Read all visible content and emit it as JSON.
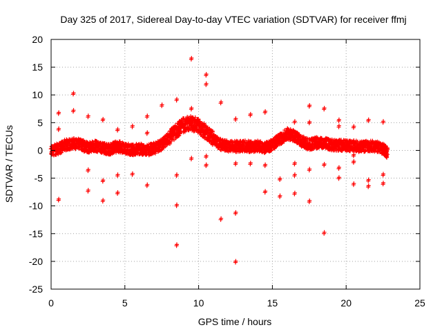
{
  "chart_data": {
    "type": "scatter",
    "title": "Day 325 of 2017, Sidereal Day-to-day VTEC variation (SDTVAR) for receiver ffmj",
    "xlabel": "GPS time / hours",
    "ylabel": "SDTVAR / TECUs",
    "xlim": [
      0,
      25
    ],
    "ylim": [
      -25,
      20
    ],
    "xticks": [
      0,
      5,
      10,
      15,
      20,
      25
    ],
    "yticks": [
      -25,
      -20,
      -15,
      -10,
      -5,
      0,
      5,
      10,
      15,
      20
    ],
    "grid": true,
    "marker": "+",
    "color": "#ff0000",
    "series": [
      {
        "name": "SDTVAR",
        "values_comment": "continuous band approximated by x/y pairs; see band and outliers",
        "band": [
          [
            0.0,
            0.0
          ],
          [
            0.5,
            0.3
          ],
          [
            1.0,
            1.0
          ],
          [
            1.5,
            1.3
          ],
          [
            2.0,
            1.0
          ],
          [
            2.5,
            0.6
          ],
          [
            3.0,
            0.8
          ],
          [
            3.5,
            0.4
          ],
          [
            4.0,
            0.2
          ],
          [
            4.5,
            0.7
          ],
          [
            5.0,
            0.4
          ],
          [
            5.5,
            0.1
          ],
          [
            6.0,
            0.3
          ],
          [
            6.5,
            0.0
          ],
          [
            7.0,
            0.4
          ],
          [
            7.5,
            1.0
          ],
          [
            8.0,
            2.3
          ],
          [
            8.5,
            3.6
          ],
          [
            9.0,
            4.6
          ],
          [
            9.5,
            4.9
          ],
          [
            10.0,
            4.4
          ],
          [
            10.5,
            3.2
          ],
          [
            11.0,
            2.0
          ],
          [
            11.5,
            1.0
          ],
          [
            12.0,
            0.8
          ],
          [
            12.5,
            0.7
          ],
          [
            13.0,
            0.8
          ],
          [
            13.5,
            0.7
          ],
          [
            14.0,
            0.8
          ],
          [
            14.5,
            0.5
          ],
          [
            15.0,
            1.0
          ],
          [
            15.5,
            2.0
          ],
          [
            16.0,
            3.0
          ],
          [
            16.5,
            2.6
          ],
          [
            17.0,
            1.6
          ],
          [
            17.5,
            1.0
          ],
          [
            18.0,
            1.4
          ],
          [
            18.5,
            1.3
          ],
          [
            19.0,
            1.0
          ],
          [
            19.5,
            0.9
          ],
          [
            20.0,
            0.9
          ],
          [
            20.5,
            0.8
          ],
          [
            21.0,
            0.7
          ],
          [
            21.5,
            0.8
          ],
          [
            22.0,
            0.7
          ],
          [
            22.5,
            0.3
          ],
          [
            22.8,
            -0.5
          ]
        ],
        "outliers": [
          [
            0.5,
            6.6
          ],
          [
            0.5,
            3.7
          ],
          [
            0.5,
            -9.0
          ],
          [
            1.5,
            10.1
          ],
          [
            1.5,
            7.0
          ],
          [
            2.5,
            6.0
          ],
          [
            2.5,
            -3.7
          ],
          [
            2.5,
            -7.4
          ],
          [
            3.5,
            5.4
          ],
          [
            3.5,
            -5.6
          ],
          [
            3.5,
            -9.2
          ],
          [
            4.5,
            3.6
          ],
          [
            4.5,
            -4.6
          ],
          [
            4.5,
            -7.8
          ],
          [
            5.5,
            4.2
          ],
          [
            5.5,
            -4.4
          ],
          [
            6.5,
            6.0
          ],
          [
            6.5,
            3.0
          ],
          [
            6.5,
            -6.4
          ],
          [
            7.5,
            8.0
          ],
          [
            8.5,
            9.0
          ],
          [
            8.5,
            -4.6
          ],
          [
            8.5,
            -10.0
          ],
          [
            8.5,
            -17.2
          ],
          [
            9.5,
            16.4
          ],
          [
            9.5,
            7.4
          ],
          [
            9.5,
            -1.6
          ],
          [
            10.5,
            13.5
          ],
          [
            10.5,
            11.8
          ],
          [
            10.5,
            -1.2
          ],
          [
            10.5,
            -2.8
          ],
          [
            11.5,
            8.5
          ],
          [
            11.5,
            -12.5
          ],
          [
            12.5,
            5.5
          ],
          [
            12.5,
            -2.5
          ],
          [
            12.5,
            -11.4
          ],
          [
            12.5,
            -20.2
          ],
          [
            13.5,
            6.3
          ],
          [
            13.5,
            -2.5
          ],
          [
            14.5,
            6.8
          ],
          [
            14.5,
            -2.8
          ],
          [
            14.5,
            -7.6
          ],
          [
            15.5,
            -5.3
          ],
          [
            15.5,
            -8.4
          ],
          [
            16.5,
            5.0
          ],
          [
            16.5,
            -2.5
          ],
          [
            16.5,
            -4.6
          ],
          [
            16.5,
            -7.9
          ],
          [
            17.5,
            7.9
          ],
          [
            17.5,
            4.9
          ],
          [
            17.5,
            -3.6
          ],
          [
            17.5,
            -9.3
          ],
          [
            18.5,
            7.4
          ],
          [
            18.5,
            -2.7
          ],
          [
            18.5,
            -15.0
          ],
          [
            19.5,
            5.3
          ],
          [
            19.5,
            4.2
          ],
          [
            19.5,
            -3.3
          ],
          [
            19.5,
            -5.1
          ],
          [
            20.5,
            4.1
          ],
          [
            20.5,
            -1.0
          ],
          [
            20.5,
            -2.2
          ],
          [
            20.5,
            -6.2
          ],
          [
            21.5,
            5.3
          ],
          [
            21.5,
            -5.5
          ],
          [
            21.5,
            -6.6
          ],
          [
            22.5,
            5.0
          ],
          [
            22.5,
            -4.5
          ],
          [
            22.5,
            -6.1
          ]
        ]
      }
    ]
  }
}
